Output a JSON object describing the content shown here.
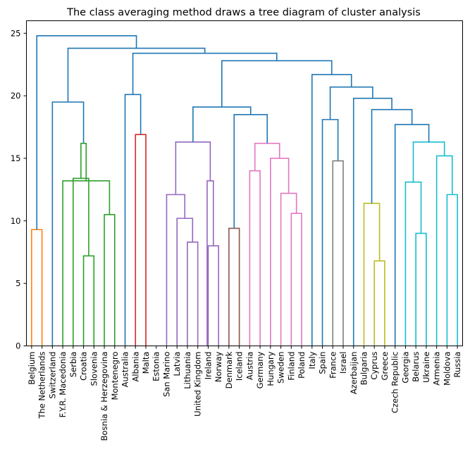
{
  "chart_data": {
    "type": "dendrogram",
    "title": "The class averaging method draws a tree diagram of cluster analysis",
    "xlabel": "",
    "ylabel": "",
    "ylim": [
      0,
      26
    ],
    "yticks": [
      0,
      5,
      10,
      15,
      20,
      25
    ],
    "grid": false,
    "leaves": [
      "Belgium",
      "The Netherlands",
      "Switzerland",
      "F.Y.R. Macedonia",
      "Serbia",
      "Croatia",
      "Slovenia",
      "Bosnia & Herzegovina",
      "Montenegro",
      "Australia",
      "Albania",
      "Malta",
      "Estonia",
      "San Marino",
      "Latvia",
      "Lithuania",
      "United Kingdom",
      "Ireland",
      "Norway",
      "Denmark",
      "Iceland",
      "Austria",
      "Germany",
      "Hungary",
      "Sweden",
      "Finland",
      "Poland",
      "Italy",
      "Spain",
      "France",
      "Israel",
      "Azerbaijan",
      "Bulgaria",
      "Cyprus",
      "Greece",
      "Czech Republic",
      "Georgia",
      "Belarus",
      "Ukraine",
      "Armenia",
      "Moldova",
      "Russia"
    ],
    "colors": {
      "above_threshold": "#1f77b4",
      "c_orange": "#ff7f0e",
      "c_green": "#2ca02c",
      "c_red": "#d62728",
      "c_purple": "#9467bd",
      "c_brown": "#8c564b",
      "c_pink": "#e377c2",
      "c_gray": "#7f7f7f",
      "c_olive": "#bcbd22",
      "c_cyan": "#17becf"
    },
    "links": [
      {
        "left": "L0",
        "right": "L1",
        "height": 9.3,
        "color": "c_orange"
      },
      {
        "left": "L6",
        "right": "L7",
        "height": 7.2,
        "color": "c_green"
      },
      {
        "left": "L5",
        "right": "N",
        "height": 13.4,
        "color": "c_green"
      },
      {
        "left": "L8",
        "right": "L9",
        "height": 10.5,
        "color": "c_green"
      },
      {
        "left": "L4",
        "right": "N",
        "height": 13.2,
        "color": "c_green"
      },
      {
        "left": "N",
        "right": "N",
        "height": 16.2,
        "color": "c_green"
      },
      {
        "left": "L3",
        "right": "N",
        "height": 19.5,
        "color": "above_threshold"
      },
      {
        "left": "L11",
        "right": "L12",
        "height": 16.9,
        "color": "c_red"
      },
      {
        "left": "L10",
        "right": "N",
        "height": 20.1,
        "color": "above_threshold"
      },
      {
        "left": "L16",
        "right": "L17",
        "height": 8.3,
        "color": "c_purple"
      },
      {
        "left": "L15",
        "right": "N",
        "height": 10.2,
        "color": "c_purple"
      },
      {
        "left": "L14",
        "right": "N",
        "height": 12.1,
        "color": "c_purple"
      },
      {
        "left": "L18",
        "right": "L19",
        "height": 8.0,
        "color": "c_purple"
      },
      {
        "left": "L17x",
        "right": "N",
        "height": 13.2,
        "color": "c_purple"
      },
      {
        "left": "N",
        "right": "N",
        "height": 16.3,
        "color": "c_purple"
      },
      {
        "left": "L20",
        "right": "L21",
        "height": 9.4,
        "color": "c_brown"
      },
      {
        "left": "L26",
        "right": "L27",
        "height": 10.6,
        "color": "c_pink"
      },
      {
        "left": "L25",
        "right": "N",
        "height": 12.2,
        "color": "c_pink"
      },
      {
        "left": "L24",
        "right": "N",
        "height": 15.0,
        "color": "c_pink"
      },
      {
        "left": "L22",
        "right": "L23",
        "height": 14.0,
        "color": "c_pink"
      },
      {
        "left": "N",
        "right": "N",
        "height": 16.2,
        "color": "c_pink"
      },
      {
        "left": "N",
        "right": "N",
        "height": 18.5,
        "color": "above_threshold"
      },
      {
        "left": "N",
        "right": "N",
        "height": 19.1,
        "color": "above_threshold"
      },
      {
        "left": "L30",
        "right": "L31",
        "height": 14.8,
        "color": "c_gray"
      },
      {
        "left": "L29",
        "right": "N",
        "height": 18.1,
        "color": "above_threshold"
      },
      {
        "left": "L34",
        "right": "L35",
        "height": 6.8,
        "color": "c_olive"
      },
      {
        "left": "L33",
        "right": "N",
        "height": 11.4,
        "color": "c_olive"
      },
      {
        "left": "L38",
        "right": "L39",
        "height": 9.0,
        "color": "c_cyan"
      },
      {
        "left": "L37",
        "right": "N",
        "height": 13.1,
        "color": "c_cyan"
      },
      {
        "left": "L41",
        "right": "L42",
        "height": 12.1,
        "color": "c_cyan"
      },
      {
        "left": "L40",
        "right": "N",
        "height": 15.2,
        "color": "c_cyan"
      },
      {
        "left": "N",
        "right": "N",
        "height": 16.3,
        "color": "c_cyan"
      },
      {
        "left": "L36",
        "right": "N",
        "height": 17.7,
        "color": "above_threshold"
      },
      {
        "left": "N",
        "right": "N",
        "height": 18.9,
        "color": "above_threshold"
      },
      {
        "left": "L32",
        "right": "N",
        "height": 19.8,
        "color": "above_threshold"
      },
      {
        "left": "N",
        "right": "N",
        "height": 20.7,
        "color": "above_threshold"
      },
      {
        "left": "N",
        "right": "N",
        "height": 21.7,
        "color": "above_threshold"
      },
      {
        "left": "L28",
        "right": "N",
        "height": 22.8,
        "color": "above_threshold"
      },
      {
        "left": "N",
        "right": "N",
        "height": 23.4,
        "color": "above_threshold"
      },
      {
        "left": "N",
        "right": "N",
        "height": 23.8,
        "color": "above_threshold"
      },
      {
        "left": "N",
        "right": "N",
        "height": 24.8,
        "color": "above_threshold"
      }
    ]
  }
}
